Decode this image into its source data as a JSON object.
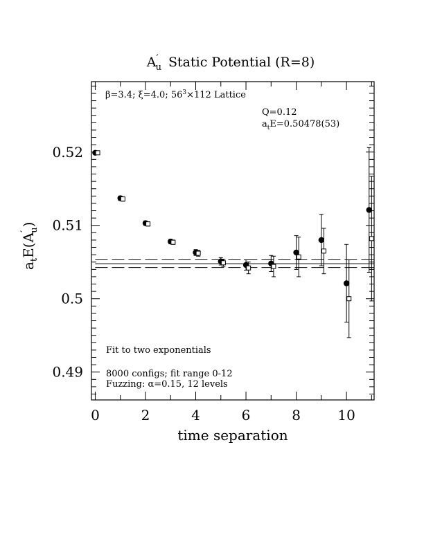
{
  "chart_data": {
    "type": "scatter",
    "title_main": "A",
    "title_prime": "′",
    "title_sub": "u",
    "title_rest": "Static Potential (R=8)",
    "xlabel": "time separation",
    "ylabel_a": "a",
    "ylabel_t": "t",
    "ylabel_E": "E(A",
    "ylabel_prime": "′",
    "ylabel_sub": "u",
    "ylabel_close": ")",
    "xlim": [
      -0.15,
      11.1
    ],
    "ylim": [
      0.4862,
      0.5296
    ],
    "x_ticks": [
      0,
      2,
      4,
      6,
      8,
      10
    ],
    "x_tick_labels": [
      "0",
      "2",
      "4",
      "6",
      "8",
      "10"
    ],
    "y_ticks": [
      0.49,
      0.5,
      0.51,
      0.52
    ],
    "y_tick_labels": [
      "0.49",
      "0.5",
      "0.51",
      "0.52"
    ],
    "annotations": {
      "lattice_beta": "β=3.4; ξ=4.0; 56",
      "lattice_exp": "3",
      "lattice_rest": "×112 Lattice",
      "q_value": "Q=0.12",
      "energy_a": "a",
      "energy_t": "t",
      "energy_rest": "E=0.50478(53)",
      "fit_desc": "Fit to two exponentials",
      "configs": "8000 configs; fit range 0-12",
      "fuzzing": "Fuzzing: α=0.15, 12 levels"
    },
    "fit": {
      "central": 0.50478,
      "upper": 0.50531,
      "lower": 0.50425,
      "x_start": 0,
      "x_end": 11.1
    },
    "series": [
      {
        "marker": "filled-circle",
        "points": [
          {
            "x": 0,
            "y": 0.5199,
            "err": 0.0002
          },
          {
            "x": 1,
            "y": 0.5137,
            "err": 0.0003
          },
          {
            "x": 2,
            "y": 0.5103,
            "err": 0.0003
          },
          {
            "x": 3,
            "y": 0.5078,
            "err": 0.0003
          },
          {
            "x": 4,
            "y": 0.5063,
            "err": 0.0004
          },
          {
            "x": 5,
            "y": 0.5051,
            "err": 0.0005
          },
          {
            "x": 6,
            "y": 0.5046,
            "err": 0.0007
          },
          {
            "x": 7,
            "y": 0.5048,
            "err": 0.0011
          },
          {
            "x": 8,
            "y": 0.5063,
            "err": 0.0023
          },
          {
            "x": 9,
            "y": 0.508,
            "err": 0.0035
          },
          {
            "x": 10,
            "y": 0.5021,
            "err": 0.0053
          },
          {
            "x": 10.9,
            "y": 0.5121,
            "err": 0.0085
          }
        ]
      },
      {
        "marker": "open-square",
        "points": [
          {
            "x": 0.1,
            "y": 0.5199,
            "err": 0.0002
          },
          {
            "x": 1.1,
            "y": 0.5136,
            "err": 0.0003
          },
          {
            "x": 2.1,
            "y": 0.5102,
            "err": 0.0003
          },
          {
            "x": 3.1,
            "y": 0.5077,
            "err": 0.0003
          },
          {
            "x": 4.1,
            "y": 0.5062,
            "err": 0.0004
          },
          {
            "x": 5.1,
            "y": 0.5049,
            "err": 0.0005
          },
          {
            "x": 6.1,
            "y": 0.5042,
            "err": 0.0008
          },
          {
            "x": 7.1,
            "y": 0.5044,
            "err": 0.0014
          },
          {
            "x": 8.1,
            "y": 0.5057,
            "err": 0.0027
          },
          {
            "x": 9.1,
            "y": 0.5065,
            "err": 0.0031
          },
          {
            "x": 10.1,
            "y": 0.5,
            "err": 0.0053
          },
          {
            "x": 11.0,
            "y": 0.5082,
            "err": 0.0085
          }
        ]
      }
    ]
  }
}
